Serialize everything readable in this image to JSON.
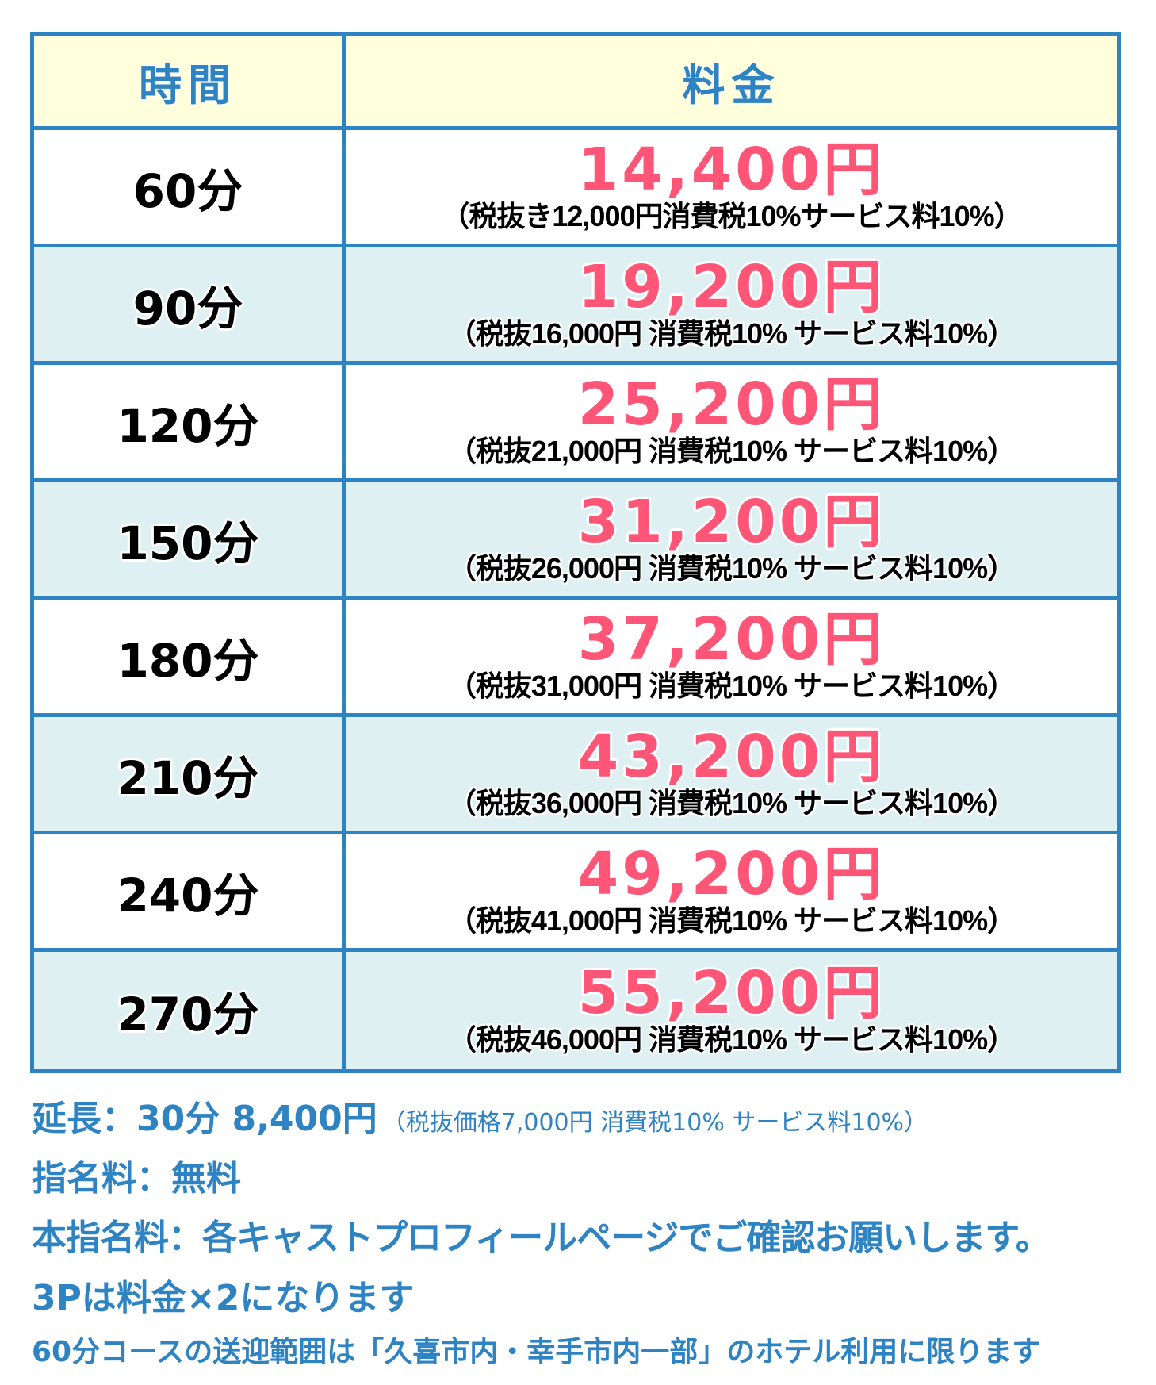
{
  "table": {
    "header": {
      "time": "時間",
      "price": "料金"
    },
    "rows": [
      {
        "time": "60分",
        "price": "14,400円",
        "breakdown": "（税抜き12,000円消費税10%サービス料10%）"
      },
      {
        "time": "90分",
        "price": "19,200円",
        "breakdown": "（税抜16,000円 消費税10% サービス料10%）"
      },
      {
        "time": "120分",
        "price": "25,200円",
        "breakdown": "（税抜21,000円 消費税10% サービス料10%）"
      },
      {
        "time": "150分",
        "price": "31,200円",
        "breakdown": "（税抜26,000円 消費税10% サービス料10%）"
      },
      {
        "time": "180分",
        "price": "37,200円",
        "breakdown": "（税抜31,000円 消費税10% サービス料10%）"
      },
      {
        "time": "210分",
        "price": "43,200円",
        "breakdown": "（税抜36,000円 消費税10% サービス料10%）"
      },
      {
        "time": "240分",
        "price": "49,200円",
        "breakdown": "（税抜41,000円 消費税10% サービス料10%）"
      },
      {
        "time": "270分",
        "price": "55,200円",
        "breakdown": "（税抜46,000円 消費税10% サービス料10%）"
      }
    ]
  },
  "notes": {
    "extension": "延長：30分 8,400円",
    "extension_detail": "（税抜価格7,000円 消費税10% サービス料10%）",
    "nomination_fee": "指名料：無料",
    "main_nomination_fee": "本指名料：各キャストプロフィールページでご確認お願いします。",
    "threesome": "3Pは料金×2になります",
    "pickup_range": "60分コースの送迎範囲は「久喜市内・幸手市内一部」のホテル利用に限ります"
  },
  "colors": {
    "border": "#2e83c3",
    "header_bg": "#ffffdc",
    "alt_row_bg": "#dff0f3",
    "price": "#ff5577",
    "notes_text": "#2e83c3"
  }
}
